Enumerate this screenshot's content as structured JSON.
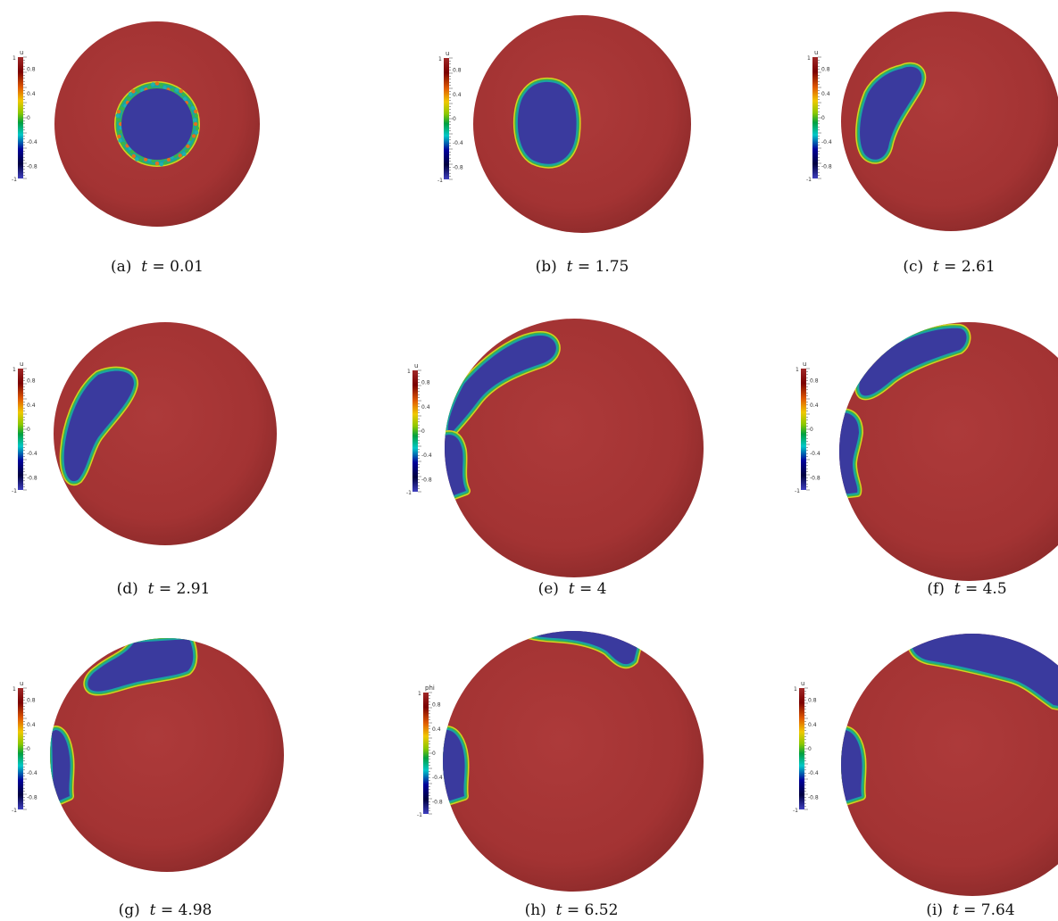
{
  "colors": {
    "background": "#ffffff",
    "field_positive": "#a33535",
    "field_negative": "#3a3a9e",
    "interface_inner": "#1aa3a3",
    "interface_mid": "#3bb34a",
    "interface_outer": "#d7d21e"
  },
  "colorbar_ticks": [
    "0.8",
    "0.4",
    "0",
    "-0.4",
    "-0.8"
  ],
  "colorbar_limits": {
    "max": "1",
    "min": "-1"
  },
  "panels": [
    {
      "label": "(a)",
      "variable": "t",
      "value": "0.01",
      "colorbar_title": "u"
    },
    {
      "label": "(b)",
      "variable": "t",
      "value": "1.75",
      "colorbar_title": "u"
    },
    {
      "label": "(c)",
      "variable": "t",
      "value": "2.61",
      "colorbar_title": "u"
    },
    {
      "label": "(d)",
      "variable": "t",
      "value": "2.91",
      "colorbar_title": "u"
    },
    {
      "label": "(e)",
      "variable": "t",
      "value": "4",
      "colorbar_title": "u"
    },
    {
      "label": "(f)",
      "variable": "t",
      "value": "4.5",
      "colorbar_title": "u"
    },
    {
      "label": "(g)",
      "variable": "t",
      "value": "4.98",
      "colorbar_title": "u"
    },
    {
      "label": "(h)",
      "variable": "t",
      "value": "6.52",
      "colorbar_title": "phi"
    },
    {
      "label": "(i)",
      "variable": "t",
      "value": "7.64",
      "colorbar_title": "u"
    }
  ]
}
